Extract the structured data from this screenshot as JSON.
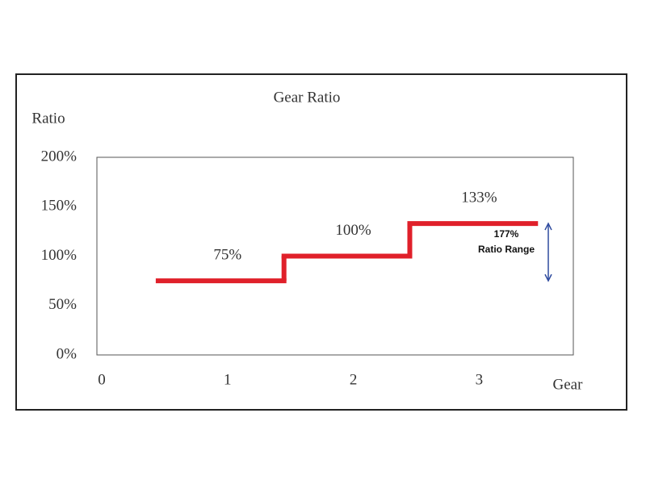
{
  "chart_data": {
    "type": "step",
    "title": "Gear Ratio",
    "y_label": "Ratio",
    "x_label": "Gear",
    "x": [
      1,
      2,
      3
    ],
    "values": [
      75,
      100,
      133
    ],
    "value_labels": [
      "75%",
      "100%",
      "133%"
    ],
    "color": "#e0202a",
    "xlim": [
      0,
      3.8
    ],
    "xticks": [
      0,
      1,
      2,
      3
    ],
    "ylim": [
      0,
      200
    ],
    "yticks": [
      {
        "value": 0,
        "label": "0%"
      },
      {
        "value": 50,
        "label": "50%"
      },
      {
        "value": 100,
        "label": "100%"
      },
      {
        "value": 150,
        "label": "150%"
      },
      {
        "value": 200,
        "label": "200%"
      }
    ],
    "grid": false,
    "annotation": {
      "lines": [
        "177%",
        "Ratio Range"
      ],
      "color": "#2e4a9e"
    }
  }
}
